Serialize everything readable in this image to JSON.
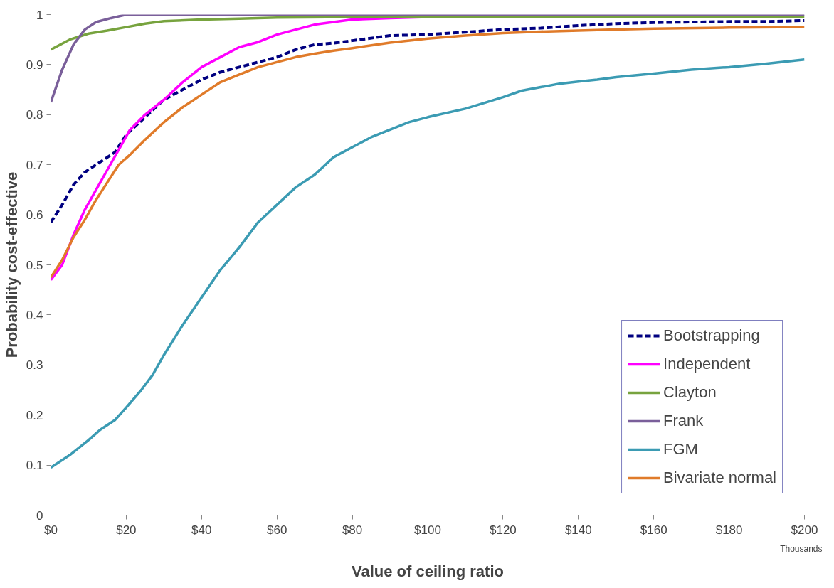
{
  "chart_data": {
    "type": "line",
    "xlabel": "Value of ceiling ratio",
    "ylabel": "Probability cost-effective",
    "annotations": [
      "Thousands"
    ],
    "xlim": [
      0,
      200
    ],
    "xticks": [
      {
        "value": 0,
        "label": "$0"
      },
      {
        "value": 20,
        "label": "$20"
      },
      {
        "value": 40,
        "label": "$40"
      },
      {
        "value": 60,
        "label": "$60"
      },
      {
        "value": 80,
        "label": "$80"
      },
      {
        "value": 100,
        "label": "$100"
      },
      {
        "value": 120,
        "label": "$120"
      },
      {
        "value": 140,
        "label": "$140"
      },
      {
        "value": 160,
        "label": "$160"
      },
      {
        "value": 180,
        "label": "$180"
      },
      {
        "value": 200,
        "label": "$200"
      }
    ],
    "ylim": [
      0,
      1
    ],
    "yticks": [
      0,
      0.1,
      0.2,
      0.3,
      0.4,
      0.5,
      0.6,
      0.7,
      0.8,
      0.9,
      1
    ],
    "grid": false,
    "legend": "bottom right",
    "series": [
      {
        "name": "Bootstrapping",
        "color": "#000080",
        "line_style": "dashed",
        "x": [
          0,
          3,
          6,
          9,
          13,
          17,
          20,
          25,
          30,
          35,
          40,
          45,
          50,
          55,
          60,
          65,
          70,
          75,
          80,
          90,
          100,
          110,
          120,
          130,
          140,
          150,
          160,
          170,
          180,
          190,
          200
        ],
        "values": [
          0.585,
          0.62,
          0.66,
          0.685,
          0.705,
          0.725,
          0.76,
          0.795,
          0.83,
          0.85,
          0.87,
          0.885,
          0.895,
          0.905,
          0.915,
          0.93,
          0.94,
          0.943,
          0.948,
          0.958,
          0.96,
          0.965,
          0.97,
          0.973,
          0.978,
          0.982,
          0.984,
          0.985,
          0.986,
          0.986,
          0.988
        ]
      },
      {
        "name": "Independent",
        "color": "#ff00ff",
        "line_style": "solid",
        "x": [
          0,
          3,
          6,
          9,
          12,
          15,
          18,
          21,
          25,
          30,
          35,
          40,
          45,
          50,
          55,
          60,
          65,
          70,
          75,
          80,
          90,
          100
        ],
        "values": [
          0.47,
          0.5,
          0.56,
          0.61,
          0.65,
          0.69,
          0.73,
          0.77,
          0.8,
          0.83,
          0.865,
          0.895,
          0.915,
          0.935,
          0.945,
          0.96,
          0.97,
          0.98,
          0.985,
          0.99,
          0.993,
          0.995
        ]
      },
      {
        "name": "Clayton",
        "color": "#77a33e",
        "line_style": "solid",
        "x": [
          0,
          5,
          10,
          15,
          20,
          25,
          30,
          40,
          50,
          60,
          80,
          100,
          150,
          200
        ],
        "values": [
          0.93,
          0.95,
          0.962,
          0.968,
          0.975,
          0.982,
          0.987,
          0.99,
          0.992,
          0.994,
          0.995,
          0.996,
          0.996,
          0.996
        ]
      },
      {
        "name": "Frank",
        "color": "#7a5f9a",
        "line_style": "solid",
        "x": [
          0,
          3,
          6,
          9,
          12,
          16,
          20,
          200
        ],
        "values": [
          0.825,
          0.89,
          0.94,
          0.97,
          0.985,
          0.993,
          1.0,
          1.0
        ]
      },
      {
        "name": "FGM",
        "color": "#3b9bb3",
        "line_style": "solid",
        "x": [
          0,
          5,
          10,
          13,
          17,
          20,
          24,
          27,
          30,
          35,
          40,
          45,
          50,
          55,
          60,
          65,
          70,
          75,
          80,
          85,
          90,
          95,
          100,
          110,
          120,
          125,
          130,
          135,
          140,
          145,
          150,
          160,
          170,
          180,
          190,
          200
        ],
        "values": [
          0.095,
          0.12,
          0.15,
          0.17,
          0.19,
          0.215,
          0.25,
          0.28,
          0.32,
          0.38,
          0.435,
          0.49,
          0.535,
          0.585,
          0.62,
          0.655,
          0.68,
          0.715,
          0.735,
          0.755,
          0.77,
          0.785,
          0.795,
          0.812,
          0.835,
          0.848,
          0.855,
          0.862,
          0.866,
          0.87,
          0.875,
          0.882,
          0.89,
          0.895,
          0.902,
          0.91
        ]
      },
      {
        "name": "Bivariate normal",
        "color": "#e07b2a",
        "line_style": "solid",
        "x": [
          0,
          3,
          6,
          9,
          12,
          15,
          18,
          21,
          25,
          30,
          35,
          40,
          45,
          50,
          55,
          60,
          65,
          70,
          75,
          80,
          90,
          100,
          110,
          120,
          130,
          140,
          150,
          160,
          180,
          200
        ],
        "values": [
          0.475,
          0.51,
          0.555,
          0.59,
          0.63,
          0.665,
          0.7,
          0.72,
          0.75,
          0.785,
          0.815,
          0.84,
          0.865,
          0.88,
          0.895,
          0.905,
          0.915,
          0.922,
          0.928,
          0.933,
          0.944,
          0.952,
          0.958,
          0.963,
          0.966,
          0.968,
          0.97,
          0.972,
          0.974,
          0.975
        ]
      }
    ]
  }
}
